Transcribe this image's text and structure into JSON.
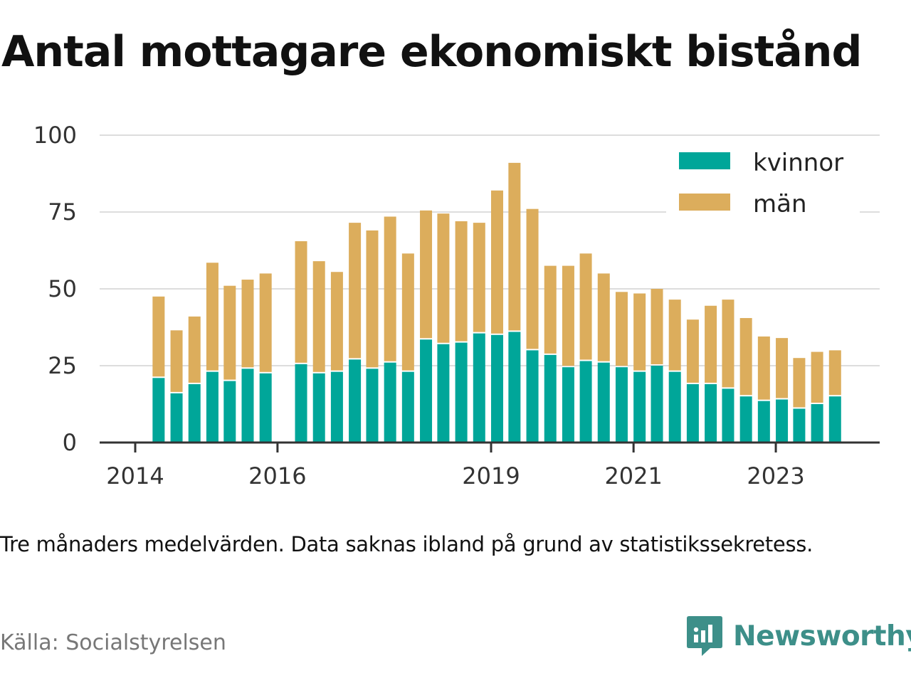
{
  "title": "Antal mottagare ekonomiskt bistånd",
  "note": "Tre månaders medelvärden. Data saknas ibland på grund av statistikssekretess.",
  "source": "Källa: Socialstyrelsen",
  "brand": "Newsworthy",
  "colors": {
    "kvinnor": "#00a699",
    "man": "#dcad5c",
    "grid": "#dddddd",
    "axis": "#333333",
    "brand": "#3d8f89"
  },
  "chart_data": {
    "type": "bar",
    "stacked": true,
    "x": [
      "2014-05",
      "2014-08",
      "2014-11",
      "2015-02",
      "2015-05",
      "2015-08",
      "2015-11",
      "2016-05",
      "2016-08",
      "2016-11",
      "2017-02",
      "2017-05",
      "2017-08",
      "2017-11",
      "2018-02",
      "2018-05",
      "2018-08",
      "2018-11",
      "2019-02",
      "2019-05",
      "2019-08",
      "2019-11",
      "2020-02",
      "2020-05",
      "2020-08",
      "2020-11",
      "2021-02",
      "2021-05",
      "2021-08",
      "2021-11",
      "2022-02",
      "2022-05",
      "2022-08",
      "2022-11",
      "2023-02",
      "2023-05",
      "2023-08",
      "2023-11"
    ],
    "series": [
      {
        "name": "kvinnor",
        "values": [
          21,
          16,
          19,
          23,
          20,
          24,
          22.5,
          25.5,
          22.5,
          23,
          27,
          24,
          26,
          23,
          33.5,
          32,
          32.5,
          35.5,
          35,
          36,
          30,
          28.5,
          24.5,
          26.5,
          26,
          24.5,
          23,
          25,
          23,
          19,
          19,
          17.5,
          15,
          13.5,
          14,
          11,
          12.5,
          15
        ]
      },
      {
        "name": "män",
        "values": [
          26.5,
          20.5,
          22,
          35.5,
          31,
          29,
          32.5,
          40,
          36.5,
          32.5,
          44.5,
          45,
          47.5,
          38.5,
          42,
          42.5,
          39.5,
          36,
          47,
          55,
          46,
          29,
          33,
          35,
          29,
          24.5,
          25.5,
          25,
          23.5,
          21,
          25.5,
          29,
          25.5,
          21,
          20,
          16.5,
          17,
          15
        ]
      }
    ],
    "xticks": [
      "2014",
      "2016",
      "2019",
      "2021",
      "2023"
    ],
    "yticks": [
      0,
      25,
      50,
      75,
      100
    ],
    "ylim": [
      0,
      100
    ],
    "legend": [
      "kvinnor",
      "män"
    ],
    "legend_position": "top-right",
    "grid": true
  }
}
